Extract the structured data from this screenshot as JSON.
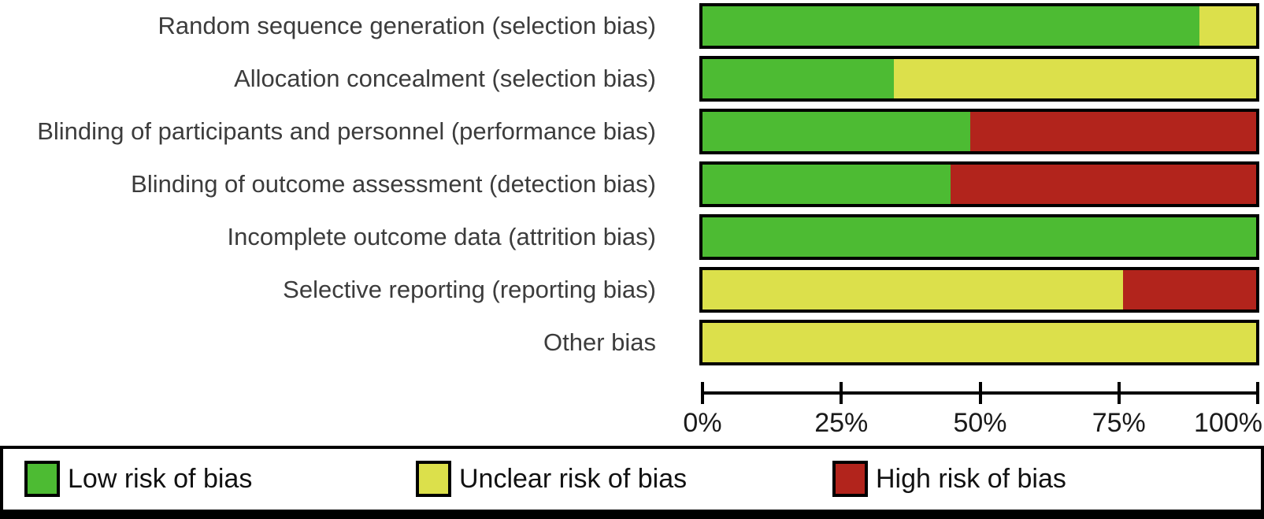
{
  "colors": {
    "low": "#4DBB33",
    "unclear": "#DCE04B",
    "high": "#B2241C",
    "border": "#000000",
    "category_text": "#3C3C3C",
    "axis_text": "#1A1A1A"
  },
  "chart_data": {
    "type": "bar",
    "subtype": "horizontal-stacked-percent",
    "title": "",
    "categories": [
      "Random sequence generation (selection bias)",
      "Allocation concealment (selection bias)",
      "Blinding of participants and personnel (performance bias)",
      "Blinding of outcome assessment (detection bias)",
      "Incomplete outcome data (attrition bias)",
      "Selective reporting (reporting bias)",
      "Other bias"
    ],
    "series": [
      {
        "name": "Low risk of bias",
        "color_key": "low",
        "values": [
          89.7,
          34.5,
          48.3,
          44.8,
          100,
          0,
          0
        ]
      },
      {
        "name": "Unclear risk of bias",
        "color_key": "unclear",
        "values": [
          10.3,
          65.5,
          0,
          0,
          0,
          75.9,
          100
        ]
      },
      {
        "name": "High risk of bias",
        "color_key": "high",
        "values": [
          0,
          0,
          51.7,
          55.2,
          0,
          24.1,
          0
        ]
      }
    ],
    "x_axis": {
      "range": [
        0,
        100
      ],
      "tick_labels": [
        "0%",
        "25%",
        "50%",
        "75%",
        "100%"
      ]
    },
    "grid": false,
    "legend_position": "bottom"
  },
  "legend": {
    "items": [
      {
        "label": "Low risk of bias",
        "color_key": "low"
      },
      {
        "label": "Unclear risk of bias",
        "color_key": "unclear"
      },
      {
        "label": "High risk of bias",
        "color_key": "high"
      }
    ]
  }
}
